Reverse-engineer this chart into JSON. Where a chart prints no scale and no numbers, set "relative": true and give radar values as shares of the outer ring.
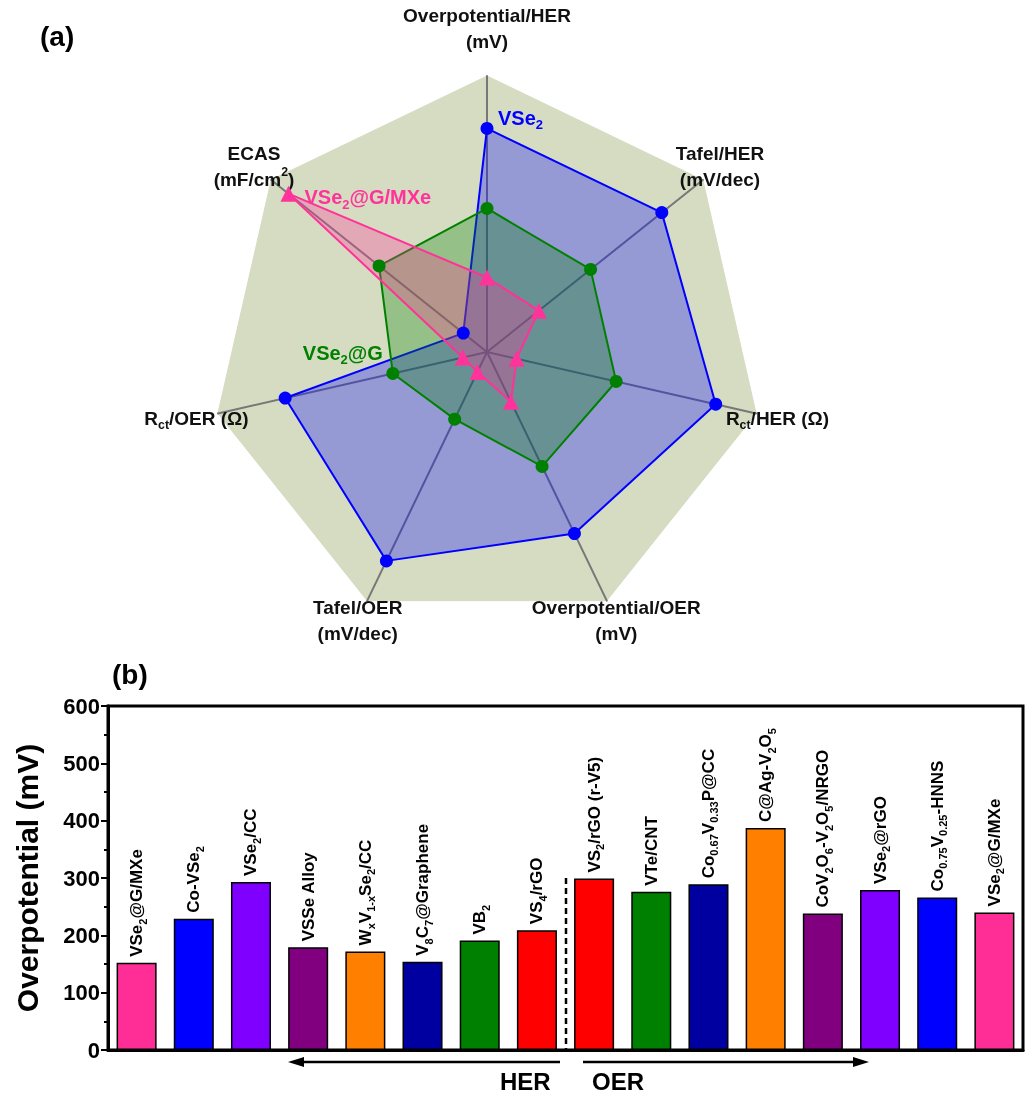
{
  "chart_data": [
    {
      "type": "radar",
      "title": "(a)",
      "relative": true,
      "categories": [
        "Overpotential/HER\n(mV)",
        "Tafel/HER\n(mV/dec)",
        "R$_{ct}$/HER (Ω)",
        "Overpotential/OER\n(mV)",
        "Tafel/OER\n(mV/dec)",
        "R$_{ct}$/OER (Ω)",
        "ECAS\n(mF/cm$^{2}$)"
      ],
      "series": [
        {
          "name": "VSe$_{2}$",
          "color": "#0000ff",
          "marker": "circle",
          "values": [
            0.81,
            0.81,
            0.85,
            0.73,
            0.84,
            0.75,
            0.11
          ]
        },
        {
          "name": "VSe$_{2}$@G",
          "color": "#008000",
          "marker": "circle",
          "values": [
            0.52,
            0.48,
            0.48,
            0.46,
            0.27,
            0.35,
            0.5
          ]
        },
        {
          "name": "VSe$_{2}$@G/MXe",
          "color": "#ff3399",
          "marker": "triangle",
          "values": [
            0.27,
            0.24,
            0.11,
            0.2,
            0.08,
            0.09,
            0.92
          ]
        }
      ]
    },
    {
      "type": "bar",
      "title": "(b)",
      "ylabel": "Overpotential (mV)",
      "categories": [
        "VSe$_{2}$@G/MXe",
        "Co-VSe$_{2}$",
        "VSe$_{2}$/CC",
        "VSSe Alloy",
        "W$_{x}$V$_{1-x}$Se$_{2}$/CC",
        "V$_{8}$C$_{7}$@Graphene",
        "VB$_{2}$",
        "VS$_{4}$/rGO",
        "VS$_{2}$/rGO (r-V5)",
        "VTe/CNT",
        "Co$_{0.67}$V$_{0.33}$P@CC",
        "C@Ag-V$_{2}$O$_{5}$",
        "CoV$_{2}$O$_{6}$-V$_{2}$O$_{5}$/NRGO",
        "VSe$_{2}$@rGO",
        "Co$_{0.75}$V$_{0.25}$-HNNS",
        "VSe$_{2}$@G/MXe"
      ],
      "values": [
        152,
        229,
        293,
        179,
        172,
        154,
        191,
        209,
        299,
        276,
        289,
        387,
        238,
        279,
        266,
        240
      ],
      "colors": [
        "#ff2d96",
        "#0000ff",
        "#7f00ff",
        "#800080",
        "#ff8000",
        "#0000a0",
        "#008000",
        "#ff0000",
        "#ff0000",
        "#008000",
        "#0000a0",
        "#ff8000",
        "#800080",
        "#7f00ff",
        "#0000ff",
        "#ff2d96"
      ],
      "ylim": [
        0,
        600
      ],
      "yticks": [
        0,
        100,
        200,
        300,
        400,
        500,
        600
      ],
      "tick_labels": "y",
      "annotations": [
        "HER",
        "OER"
      ]
    }
  ]
}
